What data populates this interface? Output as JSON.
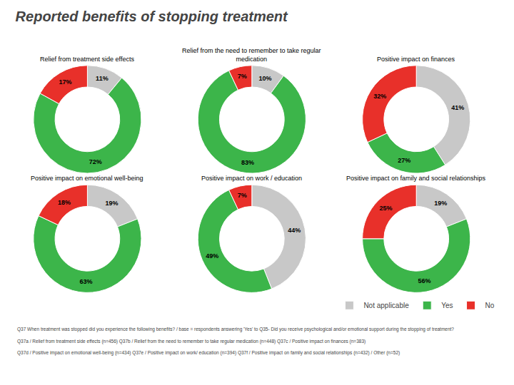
{
  "title": "Reported benefits of stopping treatment",
  "legend": "lower right",
  "annotations": [
    "Q37 When treatment was stopped did you experience the following benefits? / base = respondents answering 'Yes' to Q35- Did you receive psychological and/or emotional support during the stopping of treatment?",
    "Q37a / Relief from treatment side effects (n=456) Q37b / Relief from the need to remember to take regular medication (n=448) Q37c / Positive impact on finances (n=383)",
    "Q37d / Positive impact on emotional well-being (n=434) Q37e / Positive impact on work/ education (n=394) Q37f / Positive impact on family and social relationships (n=432) / Other (n=52)"
  ],
  "chart_data": [
    {
      "type": "pie",
      "title": "Relief from treatment side effects",
      "categories": [
        "Not applicable",
        "Yes",
        "No"
      ],
      "values": [
        11,
        72,
        17
      ],
      "value_labels": [
        "11%",
        "72%",
        "17%"
      ],
      "colors": [
        "#c8c8c8",
        "#3cb54a",
        "#e8302a"
      ],
      "data_labels": true
    },
    {
      "type": "pie",
      "title": "Relief from the need to remember to take regular\nmedication",
      "categories": [
        "Not applicable",
        "Yes",
        "No"
      ],
      "values": [
        10,
        83,
        7
      ],
      "value_labels": [
        "10%",
        "83%",
        "7%"
      ],
      "colors": [
        "#c8c8c8",
        "#3cb54a",
        "#e8302a"
      ],
      "data_labels": true
    },
    {
      "type": "pie",
      "title": "Positive impact on finances",
      "categories": [
        "Not applicable",
        "Yes",
        "No"
      ],
      "values": [
        41,
        27,
        32
      ],
      "value_labels": [
        "41%",
        "27%",
        "32%"
      ],
      "colors": [
        "#c8c8c8",
        "#3cb54a",
        "#e8302a"
      ],
      "data_labels": true
    },
    {
      "type": "pie",
      "title": "Positive impact on emotional well-being",
      "categories": [
        "Not applicable",
        "Yes",
        "No"
      ],
      "values": [
        19,
        63,
        18
      ],
      "value_labels": [
        "19%",
        "63%",
        "18%"
      ],
      "colors": [
        "#c8c8c8",
        "#3cb54a",
        "#e8302a"
      ],
      "data_labels": true
    },
    {
      "type": "pie",
      "title": "Positive impact on work / education",
      "categories": [
        "Not applicable",
        "Yes",
        "No"
      ],
      "values": [
        44,
        49,
        7
      ],
      "value_labels": [
        "44%",
        "49%",
        "7%"
      ],
      "colors": [
        "#c8c8c8",
        "#3cb54a",
        "#e8302a"
      ],
      "data_labels": true
    },
    {
      "type": "pie",
      "title": "Positive impact on family and social relationships",
      "categories": [
        "Not applicable",
        "Yes",
        "No"
      ],
      "values": [
        19,
        56,
        25
      ],
      "value_labels": [
        "19%",
        "56%",
        "25%"
      ],
      "colors": [
        "#c8c8c8",
        "#3cb54a",
        "#e8302a"
      ],
      "data_labels": true
    }
  ]
}
